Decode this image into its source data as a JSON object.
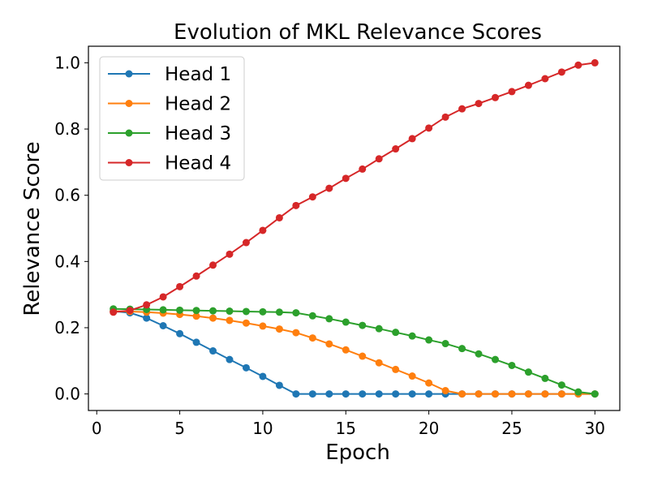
{
  "chart_data": {
    "type": "line",
    "title": "Evolution of MKL Relevance Scores",
    "xlabel": "Epoch",
    "ylabel": "Relevance Score",
    "xlim": [
      -0.5,
      31.5
    ],
    "ylim": [
      -0.05,
      1.05
    ],
    "xticks": [
      0,
      5,
      10,
      15,
      20,
      25,
      30
    ],
    "xtick_labels": [
      "0",
      "5",
      "10",
      "15",
      "20",
      "25",
      "30"
    ],
    "yticks": [
      0.0,
      0.2,
      0.4,
      0.6,
      0.8,
      1.0
    ],
    "ytick_labels": [
      "0.0",
      "0.2",
      "0.4",
      "0.6",
      "0.8",
      "1.0"
    ],
    "grid": false,
    "legend_position": "top-left",
    "x": [
      1,
      2,
      3,
      4,
      5,
      6,
      7,
      8,
      9,
      10,
      11,
      12,
      13,
      14,
      15,
      16,
      17,
      18,
      19,
      20,
      21,
      22,
      23,
      24,
      25,
      26,
      27,
      28,
      29,
      30
    ],
    "series": [
      {
        "name": "Head 1",
        "color": "#1f77b4",
        "values": [
          0.25,
          0.245,
          0.229,
          0.206,
          0.182,
          0.156,
          0.13,
          0.104,
          0.079,
          0.053,
          0.026,
          0.0,
          0.0,
          0.0,
          0.0,
          0.0,
          0.0,
          0.0,
          0.0,
          0.0,
          0.0,
          0.0,
          0.0,
          0.0,
          0.0,
          0.0,
          0.0,
          0.0,
          0.0,
          0.0
        ]
      },
      {
        "name": "Head 2",
        "color": "#ff7f0e",
        "values": [
          0.25,
          0.249,
          0.247,
          0.244,
          0.24,
          0.235,
          0.229,
          0.222,
          0.214,
          0.205,
          0.196,
          0.185,
          0.169,
          0.151,
          0.133,
          0.114,
          0.094,
          0.074,
          0.054,
          0.033,
          0.01,
          0.0,
          0.0,
          0.0,
          0.0,
          0.0,
          0.0,
          0.0,
          0.0,
          0.0
        ]
      },
      {
        "name": "Head 3",
        "color": "#2ca02c",
        "values": [
          0.257,
          0.256,
          0.255,
          0.254,
          0.253,
          0.252,
          0.251,
          0.25,
          0.249,
          0.248,
          0.247,
          0.245,
          0.236,
          0.227,
          0.217,
          0.207,
          0.197,
          0.186,
          0.175,
          0.163,
          0.152,
          0.137,
          0.121,
          0.104,
          0.086,
          0.066,
          0.047,
          0.027,
          0.006,
          0.0
        ]
      },
      {
        "name": "Head 4",
        "color": "#d62728",
        "values": [
          0.247,
          0.252,
          0.269,
          0.293,
          0.324,
          0.356,
          0.389,
          0.422,
          0.457,
          0.494,
          0.532,
          0.569,
          0.595,
          0.621,
          0.651,
          0.679,
          0.71,
          0.74,
          0.771,
          0.803,
          0.836,
          0.861,
          0.877,
          0.895,
          0.913,
          0.932,
          0.952,
          0.972,
          0.993,
          1.0
        ]
      }
    ]
  }
}
